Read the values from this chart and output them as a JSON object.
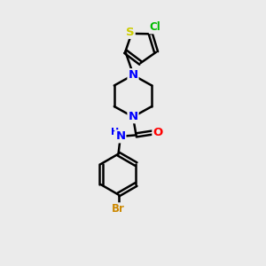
{
  "background_color": "#ebebeb",
  "bond_color": "#000000",
  "atom_colors": {
    "N": "#0000ff",
    "O": "#ff0000",
    "S": "#cccc00",
    "Cl": "#00bb00",
    "Br": "#cc8800",
    "H": "#000000",
    "C": "#000000"
  },
  "bond_width": 1.8,
  "font_size": 9.5,
  "figsize": [
    3.0,
    3.0
  ],
  "dpi": 100
}
